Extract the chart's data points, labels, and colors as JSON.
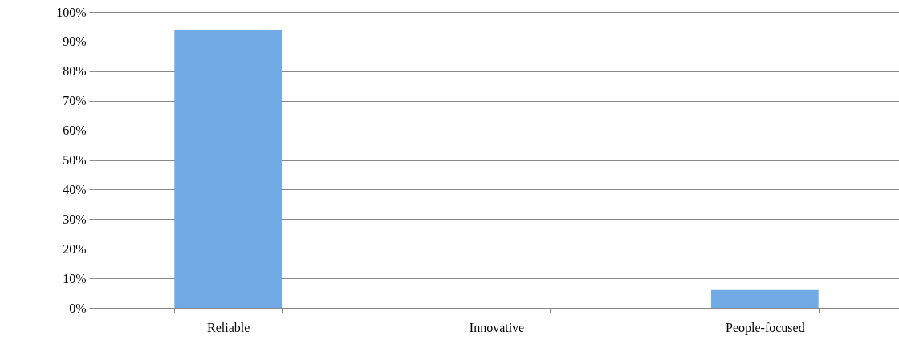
{
  "chart_data": {
    "type": "bar",
    "categories": [
      "Reliable",
      "Innovative",
      "People-focused"
    ],
    "values": [
      94,
      0,
      6
    ],
    "color": "#72aae6",
    "ylim": [
      0,
      100
    ],
    "yticks": [
      {
        "value": 0,
        "label": "0%"
      },
      {
        "value": 10,
        "label": "10%"
      },
      {
        "value": 20,
        "label": "20%"
      },
      {
        "value": 30,
        "label": "30%"
      },
      {
        "value": 40,
        "label": "40%"
      },
      {
        "value": 50,
        "label": "50%"
      },
      {
        "value": 60,
        "label": "60%"
      },
      {
        "value": 70,
        "label": "70%"
      },
      {
        "value": 80,
        "label": "80%"
      },
      {
        "value": 90,
        "label": "90%"
      },
      {
        "value": 100,
        "label": "100%"
      }
    ],
    "grid": "y"
  }
}
